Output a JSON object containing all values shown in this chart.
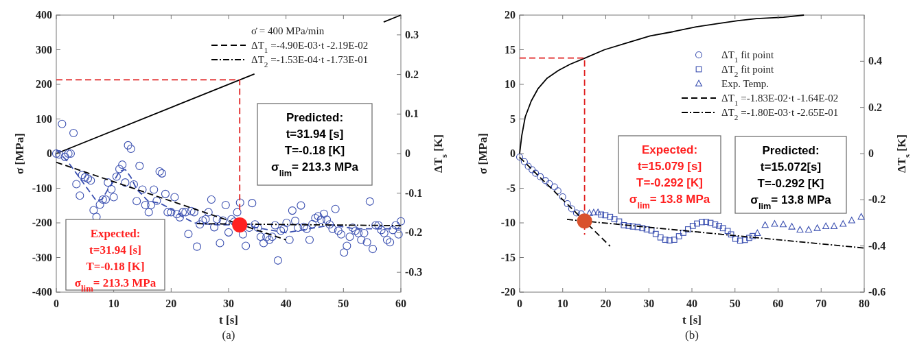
{
  "chart_data": [
    {
      "type": "scatter",
      "title": "(a)",
      "xlabel": "t [s]",
      "ylabel": "σ [MPa]",
      "y2label": "ΔT$_{s}$ [K]",
      "legend": "top right",
      "legend_title": "σ̇ = 400 MPa/min",
      "xlim": [
        0,
        60
      ],
      "xticks": [
        0,
        10,
        20,
        30,
        40,
        50,
        60
      ],
      "ylim": [
        -400,
        400
      ],
      "yticks": [
        -400,
        -300,
        -200,
        -100,
        0,
        100,
        200,
        300,
        400
      ],
      "y2lim": [
        -0.35,
        0.35
      ],
      "y2ticks": [
        -0.3,
        -0.2,
        -0.1,
        0,
        0.1,
        0.2,
        0.3
      ],
      "annotations": [
        "Predicted:\nt=31.94 [s]\nT=-0.18 [K]\nσ$_{lim}$= 213.3 MPa",
        "Expected:\nt=31.94 [s]\nT=-0.18 [K]\nσ$_{lim}$= 213.3 MPa"
      ],
      "series": [
        {
          "type": "line",
          "color": "#000000",
          "line_style": "solid",
          "x": [
            0,
            34.5,
            45,
            57,
            60
          ],
          "values": [
            0,
            230,
            null,
            380,
            400
          ]
        },
        {
          "axis": "y2",
          "color": "#3a4fb0",
          "marker": "circle",
          "x": [
            0,
            0.5,
            1,
            1.5,
            2.1,
            2.5,
            3,
            3.5,
            4.1,
            4.5,
            5,
            5.5,
            6,
            6.5,
            7,
            7.6,
            8.1,
            8.6,
            9,
            9.6,
            10,
            10.5,
            11,
            11.5,
            12,
            12.5,
            13,
            13.5,
            14,
            14.5,
            15,
            15.5,
            16.1,
            16.5,
            17,
            17.5,
            18,
            18.4,
            19,
            19.4,
            20,
            20.6,
            21,
            21.5,
            22,
            22.5,
            23,
            23.5,
            24,
            24.5,
            25,
            25.5,
            26,
            26.5,
            27,
            27.5,
            28,
            28.5,
            29,
            29.5,
            30,
            30.5,
            31,
            31.5,
            32,
            32.5,
            33,
            33.6,
            34.1,
            34.6,
            35.1,
            35.6,
            36.1,
            36.6,
            37.1,
            37.6,
            38.1,
            38.6,
            39.1,
            39.6,
            40.1,
            40.6,
            41.1,
            41.6,
            42.1,
            42.6,
            43.1,
            43.6,
            44.1,
            44.6,
            45.1,
            45.6,
            46.1,
            46.6,
            47.1,
            47.6,
            48.1,
            48.6,
            49.1,
            49.6,
            50.1,
            50.6,
            51.1,
            51.6,
            52.1,
            52.6,
            53.1,
            53.6,
            54.1,
            54.6,
            55.1,
            55.6,
            56.1,
            56.6,
            57.1,
            57.6,
            58.1,
            58.6,
            59.1,
            59.6,
            60
          ],
          "values": [
            0,
            -0.002,
            0.075,
            -0.008,
            0,
            0,
            0.052,
            -0.077,
            -0.106,
            -0.054,
            -0.06,
            -0.063,
            -0.068,
            -0.143,
            -0.16,
            -0.129,
            -0.116,
            -0.116,
            -0.073,
            -0.09,
            -0.11,
            -0.058,
            -0.039,
            -0.028,
            -0.073,
            0.021,
            0.012,
            -0.078,
            -0.12,
            -0.031,
            -0.091,
            -0.13,
            -0.148,
            -0.13,
            -0.091,
            -0.119,
            -0.045,
            -0.05,
            -0.102,
            -0.148,
            -0.148,
            -0.11,
            -0.153,
            -0.161,
            -0.148,
            -0.148,
            -0.203,
            -0.145,
            -0.148,
            -0.235,
            -0.179,
            -0.169,
            -0.166,
            -0.148,
            -0.116,
            -0.186,
            -0.166,
            -0.226,
            -0.169,
            -0.13,
            -0.199,
            -0.166,
            -0.172,
            -0.148,
            -0.124,
            -0.204,
            -0.233,
            -0.187,
            -0.125,
            -0.179,
            -0.187,
            -0.21,
            -0.226,
            -0.211,
            -0.218,
            -0.21,
            -0.181,
            -0.27,
            -0.195,
            -0.19,
            -0.175,
            -0.218,
            -0.144,
            -0.17,
            -0.187,
            -0.131,
            -0.185,
            -0.19,
            -0.218,
            -0.178,
            -0.163,
            -0.158,
            -0.167,
            -0.152,
            -0.167,
            -0.179,
            -0.19,
            -0.14,
            -0.195,
            -0.204,
            -0.25,
            -0.233,
            -0.21,
            -0.187,
            -0.195,
            -0.201,
            -0.218,
            -0.201,
            -0.224,
            -0.121,
            -0.241,
            -0.181,
            -0.181,
            -0.193,
            -0.201,
            -0.218,
            -0.224,
            -0.193,
            -0.181,
            -0.204,
            -0.171
          ]
        },
        {
          "type": "line",
          "axis": "y2",
          "color": "#3a4fb0",
          "line_style": "dashed",
          "x": [
            0,
            2,
            4,
            6,
            7,
            8,
            9,
            10,
            11,
            12,
            13,
            14,
            16,
            18,
            20,
            22,
            24,
            28,
            32,
            36,
            40,
            44,
            48,
            52,
            56,
            60
          ],
          "values": [
            0.01,
            -0.02,
            -0.06,
            -0.1,
            -0.12,
            -0.115,
            -0.09,
            -0.07,
            -0.045,
            -0.04,
            -0.06,
            -0.09,
            -0.12,
            -0.125,
            -0.14,
            -0.16,
            -0.175,
            -0.18,
            -0.18,
            -0.19,
            -0.2,
            -0.19,
            -0.18,
            -0.19,
            -0.19,
            -0.19
          ]
        },
        {
          "type": "line",
          "axis": "y2",
          "name": "ΔT$_{1}$ =-4.90E-03·t -2.19E-02",
          "color": "#000000",
          "line_style": "dashed",
          "x": [
            0,
            40
          ],
          "values": [
            -0.022,
            -0.218
          ]
        },
        {
          "type": "line",
          "axis": "y2",
          "name": "ΔT$_{2}$ =-1.53E-04·t -1.73E-01",
          "color": "#000000",
          "line_style": "dashdot",
          "x": [
            24.5,
            60
          ],
          "values": [
            -0.177,
            -0.182
          ]
        },
        {
          "type": "line",
          "color": "#e02020",
          "line_style": "dashed",
          "x": [
            0,
            31.94,
            31.94
          ],
          "values": [
            213,
            213,
            -170
          ]
        },
        {
          "type": "bubble",
          "axis": "y2",
          "color": "#ff2020",
          "x": [
            31.94
          ],
          "values": [
            -0.18
          ],
          "sizes": [
            1
          ]
        }
      ]
    },
    {
      "type": "scatter",
      "title": "(b)",
      "xlabel": "t [s]",
      "ylabel": "σ [MPa]",
      "y2label": "ΔT$_{s}$ [K]",
      "legend": "top right",
      "xlim": [
        0,
        80
      ],
      "xticks": [
        0,
        10,
        20,
        30,
        40,
        50,
        60,
        70,
        80
      ],
      "ylim": [
        -20,
        20
      ],
      "yticks": [
        -20,
        -15,
        -10,
        -5,
        0,
        5,
        10,
        15,
        20
      ],
      "y2lim": [
        -0.6,
        0.6
      ],
      "y2ticks": [
        -0.6,
        -0.4,
        -0.2,
        0,
        0.2,
        0.4
      ],
      "annotations": [
        "Expected:\nt=15.079 [s]\nT=-0.292 [K]\nσ$_{lim}$= 13.8 MPa",
        "Predicted:\nt=15.072[s]\nT=-0.292 [K]\nσ$_{lim}$= 13.8 MPa"
      ],
      "series": [
        {
          "type": "line",
          "color": "#000000",
          "line_style": "solid",
          "x": [
            0,
            0.5,
            1.3,
            2.7,
            4.3,
            6.4,
            9,
            11.7,
            15.2,
            19.7,
            25,
            30.3,
            35.6,
            41,
            46.3,
            50.7,
            55,
            61.3,
            66
          ],
          "values": [
            0,
            2.6,
            5.3,
            7.6,
            9.4,
            10.9,
            12,
            12.9,
            13.8,
            15,
            16,
            17,
            17.6,
            18.3,
            18.8,
            19.2,
            19.5,
            19.7,
            20
          ]
        },
        {
          "axis": "y2",
          "name": "ΔT$_{1}$ fit point",
          "color": "#3a4fb0",
          "marker": "circle",
          "x": [
            0,
            1.1,
            2,
            2.9,
            3.7,
            4.8,
            6,
            6.9,
            8.1,
            8.9,
            10,
            11.1,
            12.1,
            13.2,
            14.3
          ],
          "values": [
            -0.015,
            -0.035,
            -0.055,
            -0.07,
            -0.085,
            -0.1,
            -0.117,
            -0.13,
            -0.144,
            -0.161,
            -0.187,
            -0.217,
            -0.239,
            -0.257,
            -0.261
          ]
        },
        {
          "axis": "y2",
          "name": "ΔT$_{2}$ fit point",
          "color": "#3a4fb0",
          "marker": "square",
          "x": [
            18.9,
            19.9,
            21,
            22,
            23.1,
            24.2,
            25.3,
            26.3,
            27.4,
            28.5,
            29.5,
            30.6,
            31.6,
            32.7,
            33.8,
            34.8,
            35.9,
            37,
            38,
            39.1,
            40.2,
            41.2,
            42.3,
            43.3,
            44.3,
            45.4,
            46.3,
            47.2,
            48.3,
            49.1,
            50.1,
            51.2,
            52.3,
            53.3,
            54.1
          ],
          "values": [
            -0.264,
            -0.267,
            -0.274,
            -0.284,
            -0.294,
            -0.31,
            -0.313,
            -0.316,
            -0.318,
            -0.323,
            -0.328,
            -0.333,
            -0.348,
            -0.363,
            -0.373,
            -0.376,
            -0.373,
            -0.358,
            -0.343,
            -0.328,
            -0.313,
            -0.303,
            -0.297,
            -0.296,
            -0.3,
            -0.307,
            -0.313,
            -0.323,
            -0.335,
            -0.35,
            -0.369,
            -0.377,
            -0.374,
            -0.365,
            -0.357
          ]
        },
        {
          "axis": "y2",
          "name": "Exp. Temp.",
          "color": "#3a4fb0",
          "marker": "triangle",
          "x": [
            16.2,
            17.2,
            18.2,
            55.2,
            57,
            59.2,
            61.2,
            63.2,
            65.1,
            67.1,
            69.1,
            71.1,
            73,
            75.1,
            77.1,
            79.3
          ],
          "values": [
            -0.258,
            -0.256,
            -0.255,
            -0.345,
            -0.31,
            -0.305,
            -0.307,
            -0.317,
            -0.33,
            -0.33,
            -0.323,
            -0.315,
            -0.315,
            -0.305,
            -0.29,
            -0.274
          ]
        },
        {
          "type": "line",
          "axis": "y2",
          "name": "ΔT$_{1}$ =-1.83E-02·t -1.64E-02",
          "color": "#000000",
          "line_style": "dashed",
          "x": [
            0,
            21
          ],
          "values": [
            -0.016,
            -0.401
          ]
        },
        {
          "type": "line",
          "axis": "y2",
          "name": "ΔT$_{2}$ =-1.80E-03·t -2.65E-01",
          "color": "#000000",
          "line_style": "dashdot",
          "x": [
            11,
            80
          ],
          "values": [
            -0.285,
            -0.409
          ]
        },
        {
          "type": "line",
          "color": "#e02020",
          "line_style": "dashed",
          "x": [
            0,
            15.079,
            15.079
          ],
          "values": [
            13.8,
            13.8,
            -11.7
          ]
        },
        {
          "type": "bubble",
          "axis": "y2",
          "color": "#d9512c",
          "x": [
            15.079
          ],
          "values": [
            -0.292
          ],
          "sizes": [
            1
          ]
        }
      ]
    }
  ]
}
